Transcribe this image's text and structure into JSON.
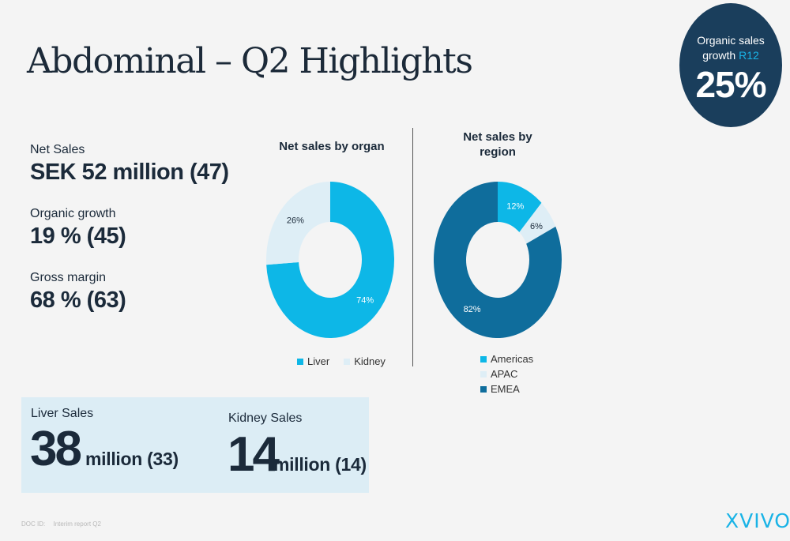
{
  "title": "Abdominal – Q2 Highlights",
  "badge": {
    "label_line1": "Organic sales",
    "label_line2": "growth ",
    "label_r12": "R12",
    "value": "25%"
  },
  "kpis": [
    {
      "label": "Net Sales",
      "value": "SEK 52 million (47)"
    },
    {
      "label": "Organic growth",
      "value": "19 % (45)"
    },
    {
      "label": "Gross margin",
      "value": "68 % (63)"
    }
  ],
  "sales": {
    "liver": {
      "label": "Liver Sales",
      "number": "38",
      "unit": "million (33)"
    },
    "kidney": {
      "label": "Kidney Sales",
      "number": "14",
      "unit": "million (14)"
    }
  },
  "footer": {
    "doc_id": "DOC ID:",
    "report": "Interim report Q2"
  },
  "logo": "XVIVO",
  "chart_data": [
    {
      "type": "pie",
      "title": "Net sales by organ",
      "categories": [
        "Liver",
        "Kidney"
      ],
      "values": [
        74,
        26
      ],
      "data_labels": [
        "74%",
        "26%"
      ],
      "colors": [
        "#0db7e7",
        "#deeef6"
      ],
      "legend_position": "bottom"
    },
    {
      "type": "pie",
      "title_lines": [
        "Net sales by",
        "region"
      ],
      "categories": [
        "Americas",
        "APAC",
        "EMEA"
      ],
      "values": [
        12,
        6,
        82
      ],
      "data_labels": [
        "12%",
        "6%",
        "82%"
      ],
      "colors": [
        "#0db7e7",
        "#deeef6",
        "#0f6d9c"
      ],
      "legend_position": "bottom"
    }
  ]
}
